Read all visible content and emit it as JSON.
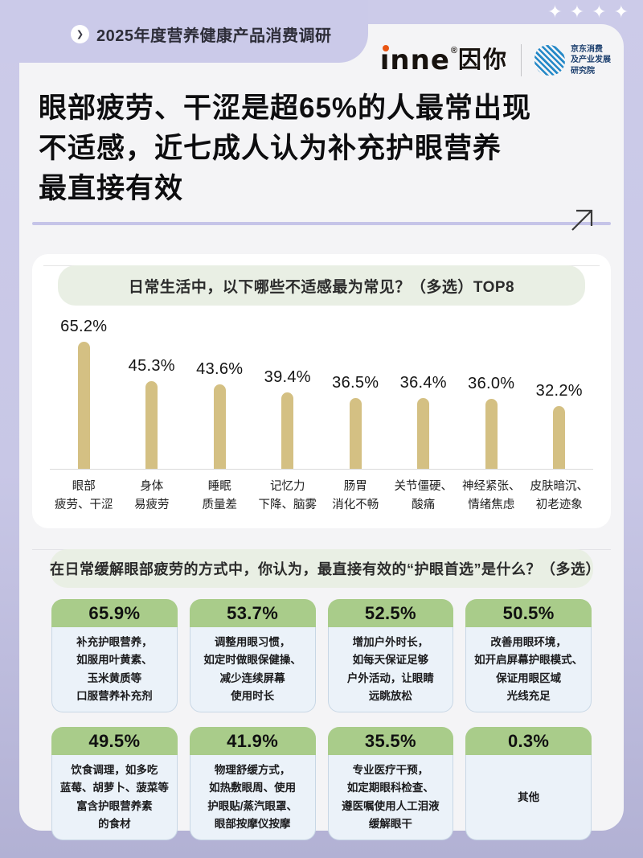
{
  "page": {
    "breadcrumb": "2025年度营养健康产品消费调研",
    "breadcrumb_chevron": "❯",
    "sparkle_glyph": "✦",
    "headline": "眼部疲劳、干涩是超65%的人最常出现\n不适感，近七成人认为补充护眼营养\n最直接有效"
  },
  "brand": {
    "inne_word": "ınne",
    "inne_reg": "®",
    "inne_cn": "因你",
    "jd_institute": "京东消费\n及产业发展\n研究院"
  },
  "chart_data": {
    "type": "bar",
    "title": "日常生活中，以下哪些不适感最为常见？（多选）TOP8",
    "categories": [
      "眼部\n疲劳、干涩",
      "身体\n易疲劳",
      "睡眠\n质量差",
      "记忆力\n下降、脑雾",
      "肠胃\n消化不畅",
      "关节僵硬、\n酸痛",
      "神经紧张、\n情绪焦虑",
      "皮肤暗沉、\n初老迹象"
    ],
    "values": [
      65.2,
      45.3,
      43.6,
      39.4,
      36.5,
      36.4,
      36.0,
      32.2
    ],
    "value_suffix": "%",
    "ylim": [
      0,
      70
    ],
    "bar_color": "#d4c083",
    "grid": false,
    "legend": "none"
  },
  "answers": {
    "question": "在日常缓解眼部疲劳的方式中，你认为，最直接有效的“护眼首选”是什么？（多选）",
    "cards": [
      {
        "percent": "65.9%",
        "text": "补充护眼营养，\n如服用叶黄素、\n玉米黄质等\n口服营养补充剂"
      },
      {
        "percent": "53.7%",
        "text": "调整用眼习惯，\n如定时做眼保健操、\n减少连续屏幕\n使用时长"
      },
      {
        "percent": "52.5%",
        "text": "增加户外时长，\n如每天保证足够\n户外活动，让眼睛\n远眺放松"
      },
      {
        "percent": "50.5%",
        "text": "改善用眼环境，\n如开启屏幕护眼模式、\n保证用眼区域\n光线充足"
      },
      {
        "percent": "49.5%",
        "text": "饮食调理，如多吃\n蓝莓、胡萝卜、菠菜等\n富含护眼营养素\n的食材"
      },
      {
        "percent": "41.9%",
        "text": "物理舒缓方式，\n如热敷眼周、使用\n护眼贴/蒸汽眼罩、\n眼部按摩仪按摩"
      },
      {
        "percent": "35.5%",
        "text": "专业医疗干预，\n如定期眼科检查、\n遵医嘱使用人工泪液\n缓解眼干"
      },
      {
        "percent": "0.3%",
        "text": "其他"
      }
    ]
  },
  "colors": {
    "background_lavender_top": "#cccbe9",
    "background_lavender_bottom": "#b2b1d4",
    "main_card": "#f4f4f6",
    "bar": "#d4c083",
    "question_pill": "#e9efe4",
    "card_header_green": "#a9cc8a",
    "card_body_blue": "#ebf2f9",
    "card_border": "#c8d7e5",
    "inne_dot_orange": "#e95513",
    "jd_blue": "#1e7ec0",
    "divider_lavender": "#c5c4e8"
  }
}
